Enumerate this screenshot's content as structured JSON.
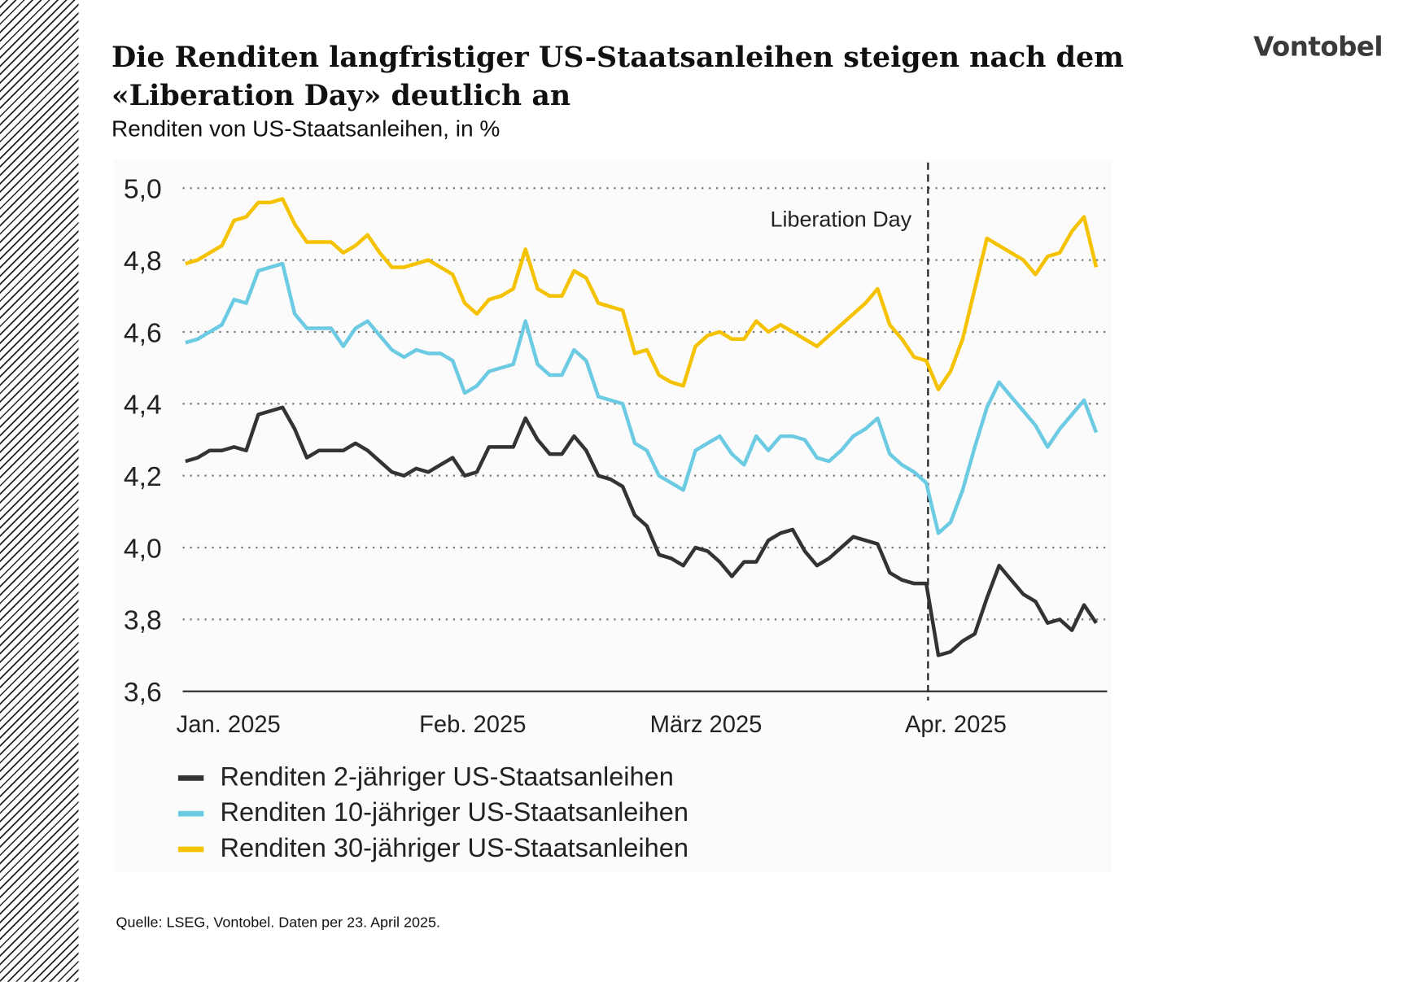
{
  "title": "Die Renditen langfristiger US-Staatsanleihen steigen nach dem «Liberation Day» deutlich an",
  "subtitle": "Renditen von US-Staatsanleihen, in %",
  "logo": "Vontobel",
  "source": "Quelle: LSEG, Vontobel. Daten per 23. April 2025.",
  "chart_data": {
    "type": "line",
    "ylim": [
      3.6,
      5.0
    ],
    "yticks": [
      "5,0",
      "4,8",
      "4,6",
      "4,4",
      "4,2",
      "4,0",
      "3,8",
      "3,6"
    ],
    "ytick_values": [
      5.0,
      4.8,
      4.6,
      4.4,
      4.2,
      4.0,
      3.8,
      3.6
    ],
    "grid": "horizontal dotted",
    "xtick_labels": [
      "Jan. 2025",
      "Feb. 2025",
      "März 2025",
      "Apr. 2025"
    ],
    "xtick_dates": [
      "2025-01-02",
      "2025-02-03",
      "2025-03-03",
      "2025-04-01"
    ],
    "annotation": {
      "label": "Liberation Day",
      "date": "2025-04-02"
    },
    "legend_position": "bottom-left",
    "x": [
      "2025-01-02",
      "2025-01-03",
      "2025-01-06",
      "2025-01-07",
      "2025-01-08",
      "2025-01-10",
      "2025-01-13",
      "2025-01-14",
      "2025-01-15",
      "2025-01-16",
      "2025-01-17",
      "2025-01-21",
      "2025-01-22",
      "2025-01-23",
      "2025-01-24",
      "2025-01-27",
      "2025-01-28",
      "2025-01-29",
      "2025-01-30",
      "2025-01-31",
      "2025-02-03",
      "2025-02-04",
      "2025-02-05",
      "2025-02-06",
      "2025-02-07",
      "2025-02-10",
      "2025-02-11",
      "2025-02-12",
      "2025-02-13",
      "2025-02-14",
      "2025-02-18",
      "2025-02-19",
      "2025-02-20",
      "2025-02-21",
      "2025-02-24",
      "2025-02-25",
      "2025-02-26",
      "2025-02-27",
      "2025-02-28",
      "2025-03-03",
      "2025-03-04",
      "2025-03-05",
      "2025-03-06",
      "2025-03-07",
      "2025-03-10",
      "2025-03-11",
      "2025-03-12",
      "2025-03-13",
      "2025-03-14",
      "2025-03-17",
      "2025-03-18",
      "2025-03-19",
      "2025-03-20",
      "2025-03-21",
      "2025-03-24",
      "2025-03-25",
      "2025-03-26",
      "2025-03-27",
      "2025-03-28",
      "2025-03-31",
      "2025-04-01",
      "2025-04-02",
      "2025-04-03",
      "2025-04-04",
      "2025-04-07",
      "2025-04-08",
      "2025-04-09",
      "2025-04-10",
      "2025-04-11",
      "2025-04-14",
      "2025-04-15",
      "2025-04-16",
      "2025-04-17",
      "2025-04-21",
      "2025-04-22",
      "2025-04-23"
    ],
    "series": [
      {
        "name": "Renditen 2-jähriger US-Staatsanleihen",
        "color": "#333333",
        "values": [
          4.24,
          4.25,
          4.27,
          4.27,
          4.28,
          4.27,
          4.37,
          4.38,
          4.39,
          4.33,
          4.25,
          4.27,
          4.27,
          4.27,
          4.29,
          4.27,
          4.24,
          4.21,
          4.2,
          4.22,
          4.21,
          4.23,
          4.25,
          4.2,
          4.21,
          4.28,
          4.28,
          4.28,
          4.36,
          4.3,
          4.26,
          4.26,
          4.31,
          4.27,
          4.2,
          4.19,
          4.17,
          4.09,
          4.06,
          3.98,
          3.97,
          3.95,
          4.0,
          3.99,
          3.96,
          3.92,
          3.96,
          3.96,
          4.02,
          4.04,
          4.05,
          3.99,
          3.95,
          3.97,
          4.0,
          4.03,
          4.02,
          4.01,
          3.93,
          3.91,
          3.9,
          3.9,
          3.7,
          3.71,
          3.74,
          3.76,
          3.86,
          3.95,
          3.91,
          3.87,
          3.85,
          3.79,
          3.8,
          3.77,
          3.84,
          3.79
        ]
      },
      {
        "name": "Renditen 10-jähriger US-Staatsanleihen",
        "color": "#6ccbe3",
        "values": [
          4.57,
          4.58,
          4.6,
          4.62,
          4.69,
          4.68,
          4.77,
          4.78,
          4.79,
          4.65,
          4.61,
          4.61,
          4.61,
          4.56,
          4.61,
          4.63,
          4.59,
          4.55,
          4.53,
          4.55,
          4.54,
          4.54,
          4.52,
          4.43,
          4.45,
          4.49,
          4.5,
          4.51,
          4.63,
          4.51,
          4.48,
          4.48,
          4.55,
          4.52,
          4.42,
          4.41,
          4.4,
          4.29,
          4.27,
          4.2,
          4.18,
          4.16,
          4.27,
          4.29,
          4.31,
          4.26,
          4.23,
          4.31,
          4.27,
          4.31,
          4.31,
          4.3,
          4.25,
          4.24,
          4.27,
          4.31,
          4.33,
          4.36,
          4.26,
          4.23,
          4.21,
          4.18,
          4.04,
          4.07,
          4.16,
          4.28,
          4.39,
          4.46,
          4.42,
          4.38,
          4.34,
          4.28,
          4.33,
          4.37,
          4.41,
          4.32
        ]
      },
      {
        "name": "Renditen 30-jähriger US-Staatsanleihen",
        "color": "#f5c200",
        "values": [
          4.79,
          4.8,
          4.82,
          4.84,
          4.91,
          4.92,
          4.96,
          4.96,
          4.97,
          4.9,
          4.85,
          4.85,
          4.85,
          4.82,
          4.84,
          4.87,
          4.82,
          4.78,
          4.78,
          4.79,
          4.8,
          4.78,
          4.76,
          4.68,
          4.65,
          4.69,
          4.7,
          4.72,
          4.83,
          4.72,
          4.7,
          4.7,
          4.77,
          4.75,
          4.68,
          4.67,
          4.66,
          4.54,
          4.55,
          4.48,
          4.46,
          4.45,
          4.56,
          4.59,
          4.6,
          4.58,
          4.58,
          4.63,
          4.6,
          4.62,
          4.6,
          4.58,
          4.56,
          4.59,
          4.62,
          4.65,
          4.68,
          4.72,
          4.62,
          4.58,
          4.53,
          4.52,
          4.44,
          4.49,
          4.58,
          4.72,
          4.86,
          4.84,
          4.82,
          4.8,
          4.76,
          4.81,
          4.82,
          4.88,
          4.92,
          4.78
        ]
      }
    ]
  }
}
